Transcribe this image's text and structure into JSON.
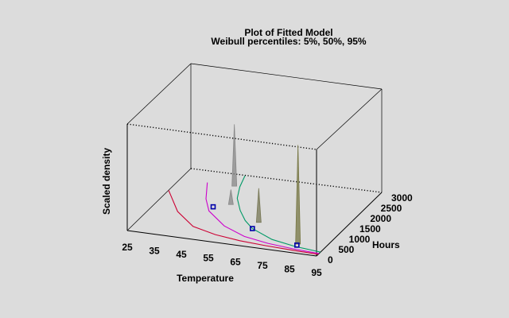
{
  "chart_data": {
    "type": "surface3d",
    "title": "Plot of Fitted Model",
    "subtitle": "Weibull percentiles: 5%,  50%,  95%",
    "xlabel": "Temperature",
    "ylabel": "Hours",
    "zlabel": "Scaled density",
    "x_ticks": [
      "25",
      "35",
      "45",
      "55",
      "65",
      "75",
      "85",
      "95"
    ],
    "y_ticks": [
      "0",
      "500",
      "1000",
      "1500",
      "2000",
      "2500",
      "3000"
    ],
    "xlim": [
      25,
      95
    ],
    "ylim": [
      0,
      3000
    ],
    "zlim": [
      0,
      1
    ],
    "box": true,
    "series": [
      {
        "color": "#cc0033",
        "points": [
          [
            25,
            1950
          ],
          [
            35,
            1100
          ],
          [
            45,
            550
          ],
          [
            55,
            330
          ],
          [
            65,
            210
          ],
          [
            75,
            150
          ],
          [
            85,
            110
          ],
          [
            95,
            80
          ]
        ]
      },
      {
        "color": "#cc00cc",
        "points": [
          [
            35,
            2500
          ],
          [
            40,
            1800
          ],
          [
            45,
            1300
          ],
          [
            55,
            750
          ],
          [
            65,
            420
          ],
          [
            75,
            260
          ],
          [
            85,
            170
          ],
          [
            95,
            120
          ]
        ]
      },
      {
        "color": "#009966",
        "points": [
          [
            45,
            3000
          ],
          [
            47,
            2500
          ],
          [
            50,
            2000
          ],
          [
            55,
            1500
          ],
          [
            60,
            1100
          ],
          [
            65,
            800
          ],
          [
            75,
            450
          ],
          [
            85,
            280
          ],
          [
            95,
            190
          ]
        ]
      }
    ],
    "markers": [
      {
        "x": 45,
        "y": 1500,
        "color": "#0000aa"
      },
      {
        "x": 65,
        "y": 800,
        "color": "#0000aa"
      },
      {
        "x": 85,
        "y": 350,
        "color": "#0000aa"
      }
    ],
    "spikes": [
      {
        "x": 45,
        "y": 2500,
        "z": 0.58,
        "color": "#888888"
      },
      {
        "x": 50,
        "y": 1700,
        "z": 0.14,
        "color": "#888888"
      },
      {
        "x": 65,
        "y": 1100,
        "z": 0.32,
        "color": "#777755"
      },
      {
        "x": 85,
        "y": 400,
        "z": 0.93,
        "color": "#777744"
      }
    ]
  }
}
